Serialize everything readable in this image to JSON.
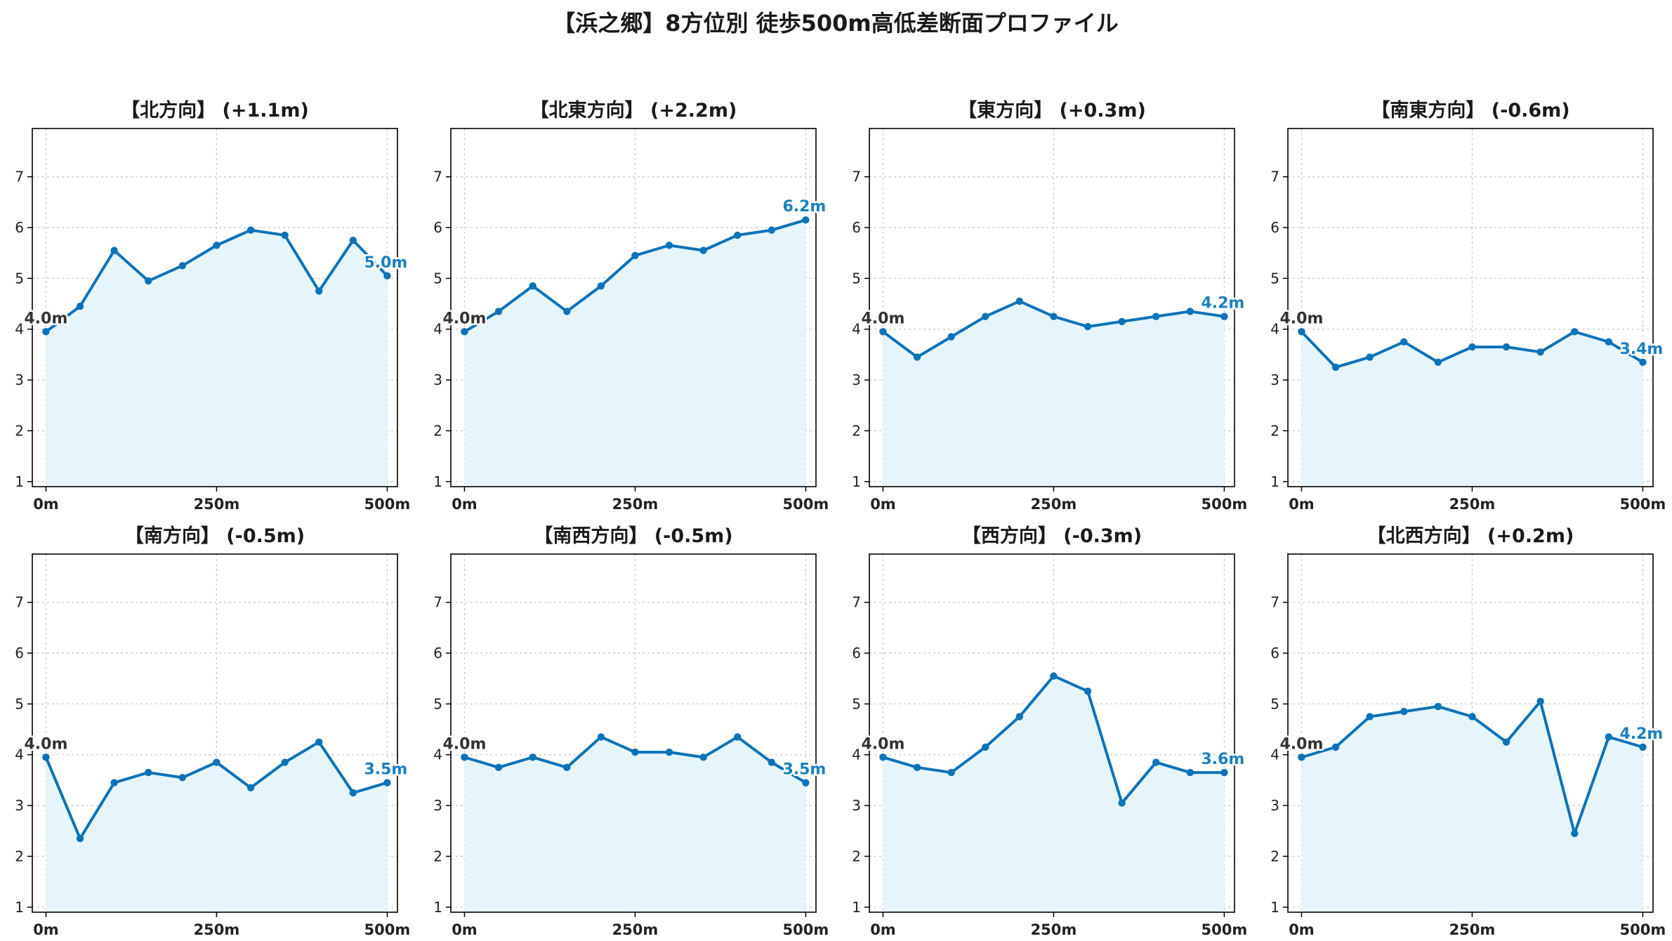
{
  "title": "【浜之郷】8方位別 徒歩500m高低差断面プロファイル",
  "colors": {
    "line": "#0d72b8",
    "fill": "#e6f5fc",
    "start_label": "#333333",
    "end_label": "#1a7fc0"
  },
  "chart_data": [
    {
      "type": "area",
      "title": "【北方向】 (+1.1m)",
      "x": [
        0,
        50,
        100,
        150,
        200,
        250,
        300,
        350,
        400,
        450,
        500
      ],
      "values": [
        3.95,
        4.45,
        5.55,
        4.95,
        5.25,
        5.65,
        5.95,
        5.85,
        4.75,
        5.75,
        5.05
      ],
      "start_label": "4.0m",
      "end_label": "5.0m",
      "xticks": [
        "0m",
        "250m",
        "500m"
      ],
      "yticks": [
        "1",
        "2",
        "3",
        "4",
        "5",
        "6",
        "7"
      ],
      "xlim": [
        -20,
        515
      ],
      "ylim": [
        0.9,
        7.95
      ],
      "grid": true
    },
    {
      "type": "area",
      "title": "【北東方向】 (+2.2m)",
      "x": [
        0,
        50,
        100,
        150,
        200,
        250,
        300,
        350,
        400,
        450,
        500
      ],
      "values": [
        3.95,
        4.35,
        4.85,
        4.35,
        4.85,
        5.45,
        5.65,
        5.55,
        5.85,
        5.95,
        6.15
      ],
      "start_label": "4.0m",
      "end_label": "6.2m",
      "xticks": [
        "0m",
        "250m",
        "500m"
      ],
      "yticks": [
        "1",
        "2",
        "3",
        "4",
        "5",
        "6",
        "7"
      ],
      "xlim": [
        -20,
        515
      ],
      "ylim": [
        0.9,
        7.95
      ],
      "grid": true
    },
    {
      "type": "area",
      "title": "【東方向】 (+0.3m)",
      "x": [
        0,
        50,
        100,
        150,
        200,
        250,
        300,
        350,
        400,
        450,
        500
      ],
      "values": [
        3.95,
        3.45,
        3.85,
        4.25,
        4.55,
        4.25,
        4.05,
        4.15,
        4.25,
        4.35,
        4.25
      ],
      "start_label": "4.0m",
      "end_label": "4.2m",
      "xticks": [
        "0m",
        "250m",
        "500m"
      ],
      "yticks": [
        "1",
        "2",
        "3",
        "4",
        "5",
        "6",
        "7"
      ],
      "xlim": [
        -20,
        515
      ],
      "ylim": [
        0.9,
        7.95
      ],
      "grid": true
    },
    {
      "type": "area",
      "title": "【南東方向】 (-0.6m)",
      "x": [
        0,
        50,
        100,
        150,
        200,
        250,
        300,
        350,
        400,
        450,
        500
      ],
      "values": [
        3.95,
        3.25,
        3.45,
        3.75,
        3.35,
        3.65,
        3.65,
        3.55,
        3.95,
        3.75,
        3.35
      ],
      "start_label": "4.0m",
      "end_label": "3.4m",
      "xticks": [
        "0m",
        "250m",
        "500m"
      ],
      "yticks": [
        "1",
        "2",
        "3",
        "4",
        "5",
        "6",
        "7"
      ],
      "xlim": [
        -20,
        515
      ],
      "ylim": [
        0.9,
        7.95
      ],
      "grid": true
    },
    {
      "type": "area",
      "title": "【南方向】 (-0.5m)",
      "x": [
        0,
        50,
        100,
        150,
        200,
        250,
        300,
        350,
        400,
        450,
        500
      ],
      "values": [
        3.95,
        2.35,
        3.45,
        3.65,
        3.55,
        3.85,
        3.35,
        3.85,
        4.25,
        3.25,
        3.45
      ],
      "start_label": "4.0m",
      "end_label": "3.5m",
      "xticks": [
        "0m",
        "250m",
        "500m"
      ],
      "yticks": [
        "1",
        "2",
        "3",
        "4",
        "5",
        "6",
        "7"
      ],
      "xlim": [
        -20,
        515
      ],
      "ylim": [
        0.9,
        7.95
      ],
      "grid": true
    },
    {
      "type": "area",
      "title": "【南西方向】 (-0.5m)",
      "x": [
        0,
        50,
        100,
        150,
        200,
        250,
        300,
        350,
        400,
        450,
        500
      ],
      "values": [
        3.95,
        3.75,
        3.95,
        3.75,
        4.35,
        4.05,
        4.05,
        3.95,
        4.35,
        3.85,
        3.45
      ],
      "start_label": "4.0m",
      "end_label": "3.5m",
      "xticks": [
        "0m",
        "250m",
        "500m"
      ],
      "yticks": [
        "1",
        "2",
        "3",
        "4",
        "5",
        "6",
        "7"
      ],
      "xlim": [
        -20,
        515
      ],
      "ylim": [
        0.9,
        7.95
      ],
      "grid": true
    },
    {
      "type": "area",
      "title": "【西方向】 (-0.3m)",
      "x": [
        0,
        50,
        100,
        150,
        200,
        250,
        300,
        350,
        400,
        450,
        500
      ],
      "values": [
        3.95,
        3.75,
        3.65,
        4.15,
        4.75,
        5.55,
        5.25,
        3.05,
        3.85,
        3.65,
        3.65
      ],
      "start_label": "4.0m",
      "end_label": "3.6m",
      "xticks": [
        "0m",
        "250m",
        "500m"
      ],
      "yticks": [
        "1",
        "2",
        "3",
        "4",
        "5",
        "6",
        "7"
      ],
      "xlim": [
        -20,
        515
      ],
      "ylim": [
        0.9,
        7.95
      ],
      "grid": true
    },
    {
      "type": "area",
      "title": "【北西方向】 (+0.2m)",
      "x": [
        0,
        50,
        100,
        150,
        200,
        250,
        300,
        350,
        400,
        450,
        500
      ],
      "values": [
        3.95,
        4.15,
        4.75,
        4.85,
        4.95,
        4.75,
        4.25,
        5.05,
        2.45,
        4.35,
        4.15
      ],
      "start_label": "4.0m",
      "end_label": "4.2m",
      "xticks": [
        "0m",
        "250m",
        "500m"
      ],
      "yticks": [
        "1",
        "2",
        "3",
        "4",
        "5",
        "6",
        "7"
      ],
      "xlim": [
        -20,
        515
      ],
      "ylim": [
        0.9,
        7.95
      ],
      "grid": true
    }
  ]
}
